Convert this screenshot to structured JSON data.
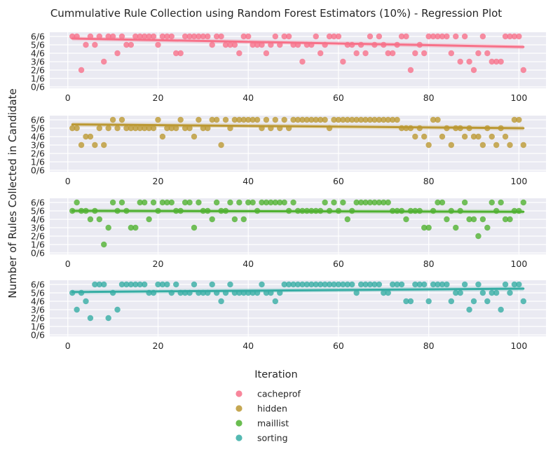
{
  "chart_data": {
    "type": "scatter",
    "title": "Cummulative Rule Collection using Random Forest Estimators (10%) - Regression Plot",
    "ylabel": "Number of Rules Collected in Candidate",
    "xlim": [
      -4,
      106
    ],
    "ylim": [
      0,
      6
    ],
    "x_ticks": [
      0,
      20,
      40,
      60,
      80,
      100
    ],
    "y_tick_labels": [
      "0/6",
      "1/6",
      "2/6",
      "3/6",
      "4/6",
      "5/6",
      "6/6"
    ],
    "grid": true,
    "legend": {
      "title": "Iteration",
      "placement": "bottom-center"
    },
    "series": [
      {
        "name": "cacheprof",
        "color": "#f77189",
        "trend": [
          5.75,
          4.75
        ],
        "x": [
          1,
          2,
          3,
          4,
          5,
          6,
          7,
          8,
          9,
          10,
          11,
          12,
          13,
          14,
          15,
          16,
          17,
          18,
          19,
          20,
          21,
          22,
          23,
          24,
          25,
          26,
          27,
          28,
          29,
          30,
          31,
          32,
          33,
          34,
          35,
          36,
          37,
          38,
          39,
          40,
          41,
          42,
          43,
          44,
          45,
          46,
          47,
          48,
          49,
          50,
          51,
          52,
          53,
          54,
          55,
          56,
          57,
          58,
          59,
          60,
          61,
          62,
          63,
          64,
          65,
          66,
          67,
          68,
          69,
          70,
          71,
          72,
          73,
          74,
          75,
          76,
          77,
          78,
          79,
          80,
          81,
          82,
          83,
          84,
          85,
          86,
          87,
          88,
          89,
          90,
          91,
          92,
          93,
          94,
          95,
          96,
          97,
          98,
          99,
          100,
          101
        ],
        "y": [
          6,
          6,
          2,
          5,
          6,
          5,
          6,
          3,
          6,
          6,
          4,
          6,
          5,
          5,
          6,
          6,
          6,
          6,
          6,
          5,
          6,
          6,
          6,
          4,
          4,
          6,
          6,
          6,
          6,
          6,
          6,
          5,
          6,
          6,
          5,
          5,
          5,
          4,
          6,
          6,
          5,
          5,
          5,
          4,
          5,
          6,
          5,
          6,
          6,
          5,
          5,
          3,
          5,
          5,
          6,
          4,
          5,
          6,
          6,
          6,
          3,
          5,
          5,
          4,
          5,
          4,
          6,
          5,
          6,
          5,
          4,
          4,
          5,
          6,
          6,
          2,
          4,
          5,
          4,
          6,
          6,
          6,
          6,
          6,
          4,
          6,
          3,
          6,
          3,
          2,
          4,
          6,
          4,
          3,
          3,
          3,
          6,
          6,
          6,
          6,
          2
        ]
      },
      {
        "name": "hidden",
        "color": "#bb9832",
        "trend": [
          5.45,
          5.0
        ],
        "x": [
          1,
          2,
          3,
          4,
          5,
          6,
          7,
          8,
          9,
          10,
          11,
          12,
          13,
          14,
          15,
          16,
          17,
          18,
          19,
          20,
          21,
          22,
          23,
          24,
          25,
          26,
          27,
          28,
          29,
          30,
          31,
          32,
          33,
          34,
          35,
          36,
          37,
          38,
          39,
          40,
          41,
          42,
          43,
          44,
          45,
          46,
          47,
          48,
          49,
          50,
          51,
          52,
          53,
          54,
          55,
          56,
          57,
          58,
          59,
          60,
          61,
          62,
          63,
          64,
          65,
          66,
          67,
          68,
          69,
          70,
          71,
          72,
          73,
          74,
          75,
          76,
          77,
          78,
          79,
          80,
          81,
          82,
          83,
          84,
          85,
          86,
          87,
          88,
          89,
          90,
          91,
          92,
          93,
          94,
          95,
          96,
          97,
          98,
          99,
          100,
          101
        ],
        "y": [
          5,
          5,
          3,
          4,
          4,
          3,
          5,
          3,
          5,
          6,
          5,
          6,
          5,
          5,
          5,
          5,
          5,
          5,
          5,
          6,
          4,
          5,
          5,
          5,
          6,
          5,
          5,
          4,
          6,
          5,
          5,
          6,
          6,
          3,
          6,
          5,
          6,
          6,
          6,
          6,
          6,
          6,
          5,
          6,
          5,
          6,
          5,
          6,
          5,
          6,
          6,
          6,
          6,
          6,
          6,
          6,
          6,
          5,
          6,
          6,
          6,
          6,
          6,
          6,
          6,
          6,
          6,
          6,
          6,
          6,
          6,
          6,
          6,
          5,
          5,
          5,
          4,
          5,
          4,
          3,
          6,
          6,
          4,
          5,
          3,
          5,
          5,
          4,
          5,
          4,
          4,
          3,
          5,
          4,
          3,
          5,
          4,
          3,
          6,
          6,
          3
        ]
      },
      {
        "name": "maillist",
        "color": "#50b131",
        "trend": [
          5.0,
          4.9
        ],
        "x": [
          1,
          2,
          3,
          4,
          5,
          6,
          7,
          8,
          9,
          10,
          11,
          12,
          13,
          14,
          15,
          16,
          17,
          18,
          19,
          20,
          21,
          22,
          23,
          24,
          25,
          26,
          27,
          28,
          29,
          30,
          31,
          32,
          33,
          34,
          35,
          36,
          37,
          38,
          39,
          40,
          41,
          42,
          43,
          44,
          45,
          46,
          47,
          48,
          49,
          50,
          51,
          52,
          53,
          54,
          55,
          56,
          57,
          58,
          59,
          60,
          61,
          62,
          63,
          64,
          65,
          66,
          67,
          68,
          69,
          70,
          71,
          72,
          73,
          74,
          75,
          76,
          77,
          78,
          79,
          80,
          81,
          82,
          83,
          84,
          85,
          86,
          87,
          88,
          89,
          90,
          91,
          92,
          93,
          94,
          95,
          96,
          97,
          98,
          99,
          100,
          101
        ],
        "y": [
          5,
          6,
          5,
          5,
          4,
          5,
          4,
          1,
          3,
          6,
          5,
          6,
          5,
          3,
          3,
          6,
          6,
          4,
          6,
          5,
          6,
          6,
          6,
          5,
          5,
          6,
          6,
          3,
          6,
          5,
          5,
          4,
          6,
          5,
          5,
          6,
          4,
          6,
          4,
          6,
          6,
          5,
          6,
          6,
          6,
          6,
          6,
          6,
          5,
          6,
          5,
          5,
          5,
          5,
          5,
          5,
          6,
          5,
          6,
          5,
          6,
          4,
          5,
          6,
          6,
          6,
          6,
          6,
          6,
          6,
          6,
          5,
          5,
          5,
          4,
          5,
          5,
          5,
          3,
          3,
          5,
          6,
          6,
          4,
          5,
          3,
          5,
          6,
          4,
          4,
          2,
          4,
          3,
          6,
          5,
          6,
          4,
          4,
          5,
          5,
          6
        ]
      },
      {
        "name": "sorting",
        "color": "#36ada4",
        "trend": [
          5.1,
          5.5
        ],
        "x": [
          1,
          2,
          3,
          4,
          5,
          6,
          7,
          8,
          9,
          10,
          11,
          12,
          13,
          14,
          15,
          16,
          17,
          18,
          19,
          20,
          21,
          22,
          23,
          24,
          25,
          26,
          27,
          28,
          29,
          30,
          31,
          32,
          33,
          34,
          35,
          36,
          37,
          38,
          39,
          40,
          41,
          42,
          43,
          44,
          45,
          46,
          47,
          48,
          49,
          50,
          51,
          52,
          53,
          54,
          55,
          56,
          57,
          58,
          59,
          60,
          61,
          62,
          63,
          64,
          65,
          66,
          67,
          68,
          69,
          70,
          71,
          72,
          73,
          74,
          75,
          76,
          77,
          78,
          79,
          80,
          81,
          82,
          83,
          84,
          85,
          86,
          87,
          88,
          89,
          90,
          91,
          92,
          93,
          94,
          95,
          96,
          97,
          98,
          99,
          100,
          101
        ],
        "y": [
          5,
          3,
          5,
          4,
          2,
          6,
          6,
          6,
          2,
          5,
          3,
          6,
          6,
          6,
          6,
          6,
          6,
          5,
          5,
          6,
          6,
          6,
          5,
          6,
          5,
          5,
          5,
          6,
          5,
          5,
          5,
          6,
          5,
          4,
          5,
          6,
          5,
          5,
          5,
          5,
          5,
          5,
          6,
          5,
          5,
          4,
          5,
          6,
          6,
          6,
          6,
          6,
          6,
          6,
          6,
          6,
          6,
          6,
          6,
          6,
          6,
          6,
          6,
          5,
          6,
          6,
          6,
          6,
          6,
          5,
          5,
          6,
          6,
          6,
          4,
          4,
          6,
          6,
          6,
          4,
          6,
          6,
          6,
          6,
          4,
          5,
          5,
          6,
          3,
          4,
          6,
          5,
          4,
          5,
          5,
          3,
          6,
          5,
          6,
          6,
          4
        ]
      }
    ]
  }
}
